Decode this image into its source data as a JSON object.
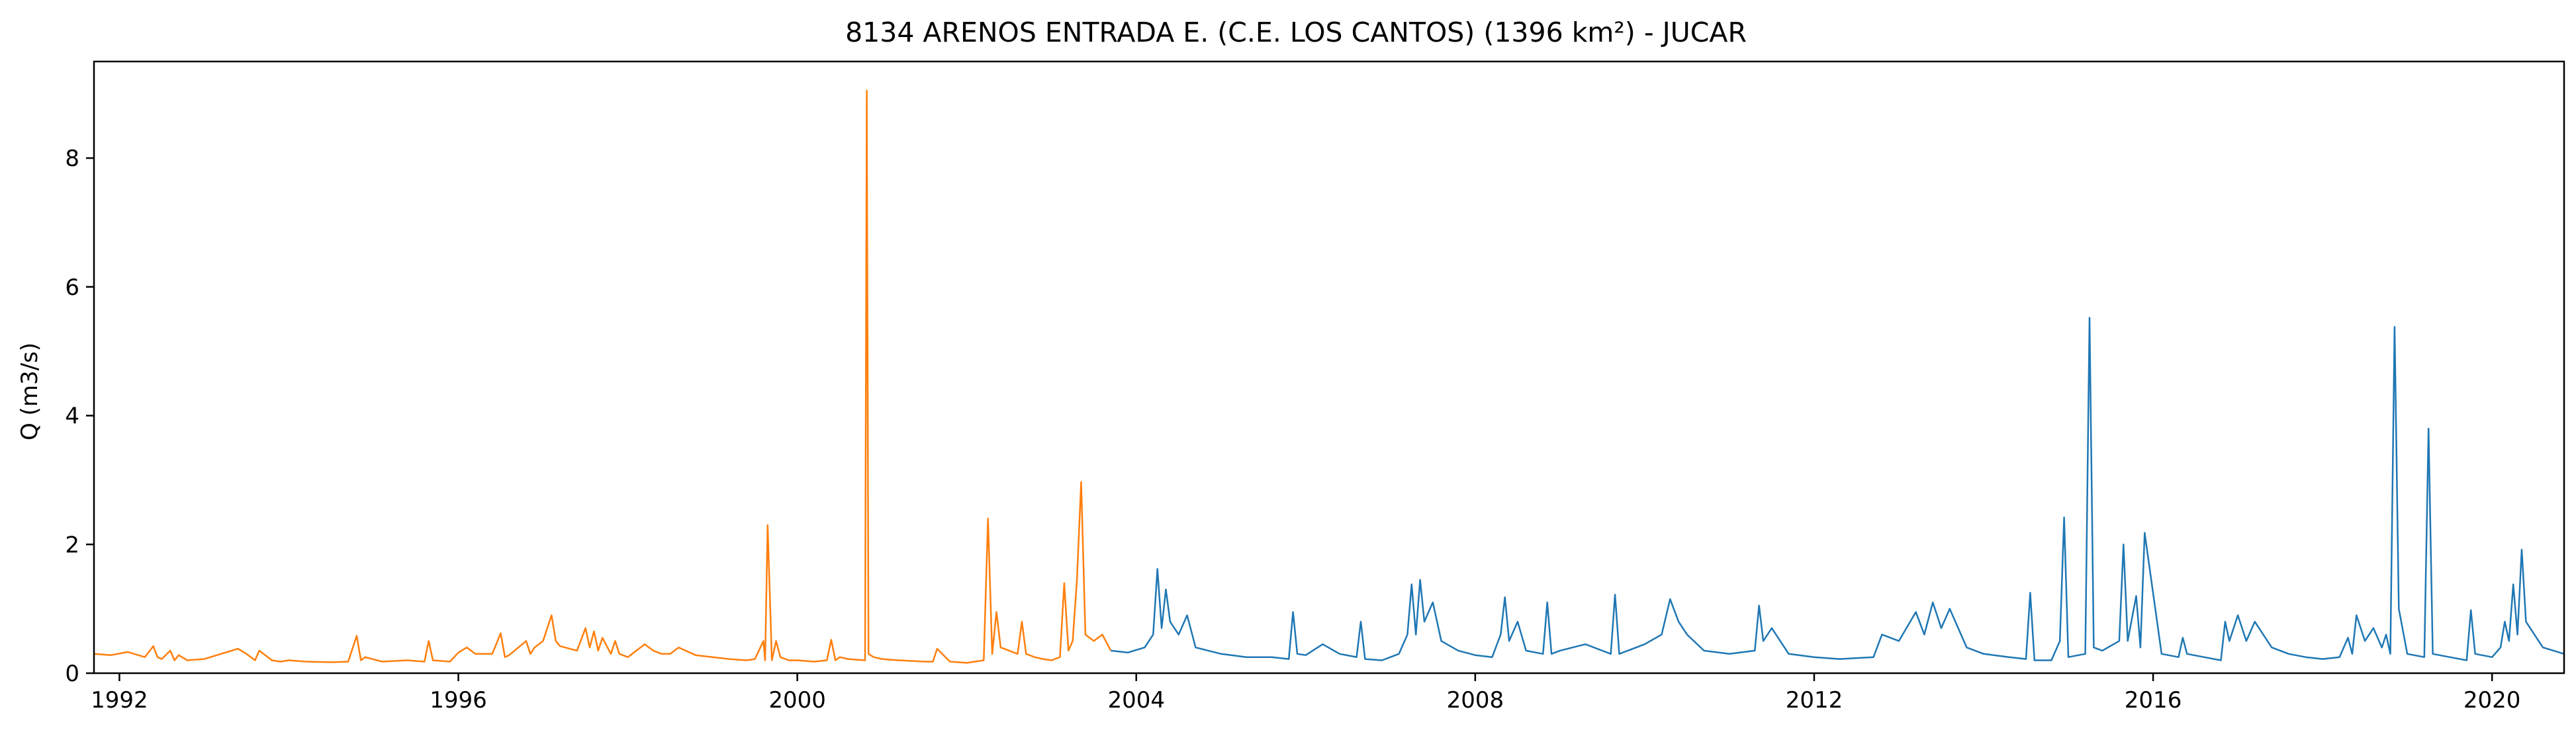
{
  "chart_data": {
    "type": "line",
    "title": "8134 ARENOS ENTRADA E. (C.E. LOS CANTOS) (1396 km²) - JUCAR",
    "xlabel": "",
    "ylabel": "Q (m3/s)",
    "xlim": [
      1991.7,
      2020.85
    ],
    "ylim": [
      0,
      9.5
    ],
    "x_ticks": [
      1992,
      1996,
      2000,
      2004,
      2008,
      2012,
      2016,
      2020
    ],
    "y_ticks": [
      0,
      2,
      4,
      6,
      8
    ],
    "grid": false,
    "legend": "none",
    "series": [
      {
        "color": "#ff7f0e",
        "x": [
          1991.7,
          1991.9,
          1992.1,
          1992.3,
          1992.4,
          1992.45,
          1992.5,
          1992.6,
          1992.65,
          1992.7,
          1992.8,
          1993.0,
          1993.2,
          1993.4,
          1993.5,
          1993.6,
          1993.65,
          1993.8,
          1993.9,
          1994.0,
          1994.2,
          1994.5,
          1994.7,
          1994.8,
          1994.85,
          1994.9,
          1995.1,
          1995.4,
          1995.6,
          1995.65,
          1995.7,
          1995.9,
          1996.0,
          1996.1,
          1996.2,
          1996.4,
          1996.5,
          1996.55,
          1996.6,
          1996.8,
          1996.85,
          1996.9,
          1997.0,
          1997.1,
          1997.15,
          1997.2,
          1997.4,
          1997.5,
          1997.55,
          1997.6,
          1997.65,
          1997.7,
          1997.8,
          1997.85,
          1997.9,
          1998.0,
          1998.1,
          1998.2,
          1998.3,
          1998.4,
          1998.5,
          1998.6,
          1998.8,
          1999.0,
          1999.2,
          1999.4,
          1999.5,
          1999.6,
          1999.62,
          1999.65,
          1999.7,
          1999.75,
          1999.8,
          1999.9,
          2000.0,
          2000.2,
          2000.35,
          2000.4,
          2000.45,
          2000.5,
          2000.6,
          2000.8,
          2000.82,
          2000.84,
          2000.9,
          2001.0,
          2001.2,
          2001.5,
          2001.6,
          2001.65,
          2001.8,
          2002.0,
          2002.2,
          2002.25,
          2002.3,
          2002.35,
          2002.4,
          2002.5,
          2002.6,
          2002.65,
          2002.7,
          2002.8,
          2002.9,
          2003.0,
          2003.1,
          2003.15,
          2003.2,
          2003.25,
          2003.3,
          2003.35,
          2003.4,
          2003.5,
          2003.6,
          2003.7
        ],
        "y": [
          0.3,
          0.28,
          0.33,
          0.25,
          0.42,
          0.25,
          0.22,
          0.35,
          0.2,
          0.28,
          0.2,
          0.22,
          0.3,
          0.38,
          0.3,
          0.2,
          0.35,
          0.2,
          0.18,
          0.2,
          0.18,
          0.17,
          0.18,
          0.58,
          0.2,
          0.25,
          0.18,
          0.2,
          0.18,
          0.5,
          0.2,
          0.18,
          0.32,
          0.4,
          0.3,
          0.3,
          0.62,
          0.25,
          0.28,
          0.5,
          0.3,
          0.4,
          0.5,
          0.9,
          0.5,
          0.42,
          0.35,
          0.7,
          0.4,
          0.65,
          0.35,
          0.55,
          0.3,
          0.5,
          0.3,
          0.25,
          0.35,
          0.45,
          0.35,
          0.3,
          0.3,
          0.4,
          0.28,
          0.25,
          0.22,
          0.2,
          0.22,
          0.5,
          0.2,
          2.3,
          0.2,
          0.5,
          0.25,
          0.2,
          0.2,
          0.18,
          0.2,
          0.52,
          0.2,
          0.25,
          0.22,
          0.2,
          9.05,
          0.3,
          0.25,
          0.22,
          0.2,
          0.18,
          0.18,
          0.38,
          0.18,
          0.16,
          0.2,
          2.4,
          0.3,
          0.95,
          0.4,
          0.35,
          0.3,
          0.8,
          0.3,
          0.25,
          0.22,
          0.2,
          0.25,
          1.4,
          0.35,
          0.5,
          1.45,
          2.97,
          0.6,
          0.5,
          0.6,
          0.35
        ]
      },
      {
        "color": "#1f77b4",
        "x": [
          2003.7,
          2003.9,
          2004.1,
          2004.2,
          2004.25,
          2004.3,
          2004.35,
          2004.4,
          2004.5,
          2004.6,
          2004.7,
          2005.0,
          2005.3,
          2005.6,
          2005.8,
          2005.85,
          2005.9,
          2006.0,
          2006.2,
          2006.4,
          2006.6,
          2006.65,
          2006.7,
          2006.9,
          2007.0,
          2007.1,
          2007.2,
          2007.25,
          2007.3,
          2007.35,
          2007.4,
          2007.5,
          2007.6,
          2007.8,
          2008.0,
          2008.2,
          2008.3,
          2008.35,
          2008.4,
          2008.5,
          2008.6,
          2008.8,
          2008.85,
          2008.9,
          2009.0,
          2009.3,
          2009.6,
          2009.65,
          2009.7,
          2010.0,
          2010.2,
          2010.3,
          2010.4,
          2010.5,
          2010.7,
          2011.0,
          2011.3,
          2011.35,
          2011.4,
          2011.5,
          2011.7,
          2012.0,
          2012.3,
          2012.7,
          2012.8,
          2013.0,
          2013.2,
          2013.3,
          2013.4,
          2013.5,
          2013.6,
          2013.8,
          2014.0,
          2014.3,
          2014.5,
          2014.55,
          2014.6,
          2014.8,
          2014.9,
          2014.95,
          2015.0,
          2015.2,
          2015.25,
          2015.3,
          2015.4,
          2015.6,
          2015.65,
          2015.7,
          2015.8,
          2015.85,
          2015.9,
          2016.1,
          2016.3,
          2016.35,
          2016.4,
          2016.6,
          2016.8,
          2016.85,
          2016.9,
          2017.0,
          2017.1,
          2017.2,
          2017.4,
          2017.6,
          2017.8,
          2018.0,
          2018.2,
          2018.3,
          2018.35,
          2018.4,
          2018.5,
          2018.6,
          2018.7,
          2018.75,
          2018.8,
          2018.85,
          2018.9,
          2019.0,
          2019.2,
          2019.25,
          2019.3,
          2019.5,
          2019.7,
          2019.75,
          2019.8,
          2020.0,
          2020.1,
          2020.15,
          2020.2,
          2020.25,
          2020.3,
          2020.35,
          2020.4,
          2020.5,
          2020.6,
          2020.85
        ],
        "y": [
          0.35,
          0.32,
          0.4,
          0.6,
          1.62,
          0.7,
          1.3,
          0.8,
          0.6,
          0.9,
          0.4,
          0.3,
          0.25,
          0.25,
          0.22,
          0.95,
          0.3,
          0.28,
          0.45,
          0.3,
          0.25,
          0.8,
          0.22,
          0.2,
          0.25,
          0.3,
          0.6,
          1.38,
          0.6,
          1.45,
          0.8,
          1.1,
          0.5,
          0.35,
          0.28,
          0.25,
          0.6,
          1.18,
          0.5,
          0.8,
          0.35,
          0.3,
          1.1,
          0.3,
          0.35,
          0.45,
          0.3,
          1.22,
          0.3,
          0.45,
          0.6,
          1.15,
          0.8,
          0.6,
          0.35,
          0.3,
          0.35,
          1.05,
          0.5,
          0.7,
          0.3,
          0.25,
          0.22,
          0.25,
          0.6,
          0.5,
          0.95,
          0.6,
          1.1,
          0.7,
          1.0,
          0.4,
          0.3,
          0.25,
          0.22,
          1.25,
          0.2,
          0.2,
          0.5,
          2.42,
          0.25,
          0.3,
          5.52,
          0.4,
          0.35,
          0.5,
          2.0,
          0.5,
          1.2,
          0.4,
          2.18,
          0.3,
          0.25,
          0.55,
          0.3,
          0.25,
          0.2,
          0.8,
          0.5,
          0.9,
          0.5,
          0.8,
          0.4,
          0.3,
          0.25,
          0.22,
          0.25,
          0.55,
          0.3,
          0.9,
          0.5,
          0.7,
          0.4,
          0.6,
          0.3,
          5.38,
          1.0,
          0.3,
          0.25,
          3.8,
          0.3,
          0.25,
          0.2,
          0.98,
          0.3,
          0.25,
          0.4,
          0.8,
          0.5,
          1.38,
          0.6,
          1.92,
          0.8,
          0.6,
          0.4,
          0.3
        ]
      }
    ]
  }
}
